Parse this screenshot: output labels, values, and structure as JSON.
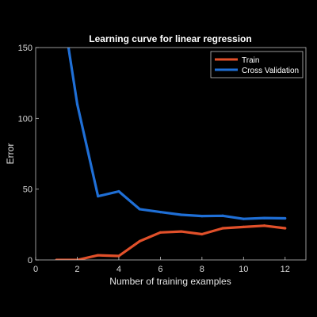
{
  "chart_data": {
    "type": "line",
    "title": "Learning curve for linear regression",
    "xlabel": "Number of training examples",
    "ylabel": "Error",
    "xlim": [
      0,
      13
    ],
    "ylim": [
      0,
      150
    ],
    "xticks": [
      0,
      2,
      4,
      6,
      8,
      10,
      12
    ],
    "yticks": [
      0,
      50,
      100,
      150
    ],
    "grid": false,
    "legend_position": "top-right",
    "background": "#000000",
    "axis_color": "#bfbfbf",
    "series": [
      {
        "name": "Train",
        "color": "#e1502a",
        "x": [
          1,
          2,
          3,
          4,
          5,
          6,
          7,
          8,
          9,
          10,
          11,
          12
        ],
        "y": [
          0,
          0,
          3.3,
          2.8,
          13.2,
          19.4,
          20.1,
          18.2,
          22.4,
          23.3,
          24.2,
          22.4
        ]
      },
      {
        "name": "Cross Validation",
        "color": "#1f6fd6",
        "x": [
          1,
          2,
          3,
          4,
          5,
          6,
          7,
          8,
          9,
          10,
          11,
          12
        ],
        "y": [
          205,
          110,
          45,
          48.4,
          35.9,
          33.8,
          31.9,
          31,
          31.2,
          29,
          29.6,
          29.4
        ]
      }
    ]
  }
}
